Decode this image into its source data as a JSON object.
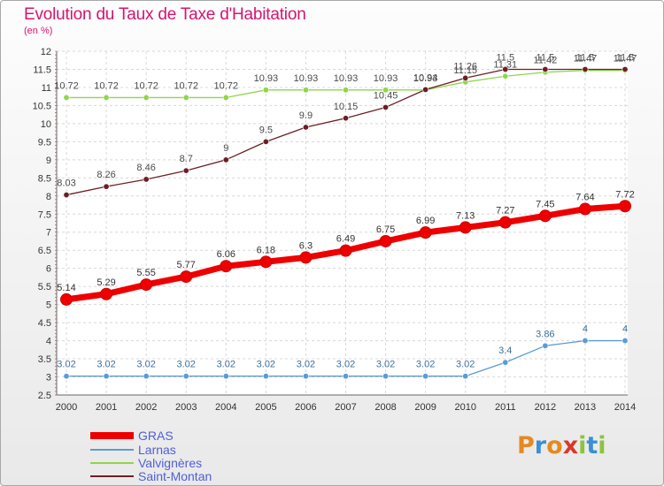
{
  "title": "Evolution du Taux de Taxe d'Habitation",
  "subtitle": "(en %)",
  "brand": {
    "text": "Proxiti",
    "letters": [
      {
        "ch": "P",
        "color": "#e58a1f"
      },
      {
        "ch": "r",
        "color": "#3b8fd6"
      },
      {
        "ch": "o",
        "color": "#e58a1f"
      },
      {
        "ch": "x",
        "color": "#d83a2a"
      },
      {
        "ch": "i",
        "color": "#8cc43c"
      },
      {
        "ch": "t",
        "color": "#3b8fd6"
      },
      {
        "ch": "i",
        "color": "#8cc43c"
      }
    ]
  },
  "colors": {
    "title": "#d4156f",
    "legend_text": "#4f5fd9",
    "grid": "#d8d8d8",
    "axis": "#666666"
  },
  "chart_data": {
    "type": "line",
    "title": "Evolution du Taux de Taxe d'Habitation",
    "ylabel": "(en %)",
    "xlabel": "",
    "x": [
      "2000",
      "2001",
      "2002",
      "2003",
      "2004",
      "2005",
      "2006",
      "2007",
      "2008",
      "2009",
      "2010",
      "2011",
      "2012",
      "2013",
      "2014"
    ],
    "ylim": [
      2.5,
      12
    ],
    "yticks": [
      "2.5",
      "3",
      "3.5",
      "4",
      "4.5",
      "5",
      "5.5",
      "6",
      "6.5",
      "7",
      "7.5",
      "8",
      "8.5",
      "9",
      "9.5",
      "10",
      "10.5",
      "11",
      "11.5",
      "12"
    ],
    "grid": true,
    "legend_position": "bottom-left",
    "series": [
      {
        "name": "GRAS",
        "color": "#ee0000",
        "style": "thick",
        "values": [
          5.14,
          5.29,
          5.55,
          5.77,
          6.06,
          6.18,
          6.3,
          6.49,
          6.75,
          6.99,
          7.13,
          7.27,
          7.45,
          7.64,
          7.72
        ],
        "labels": [
          "5.14",
          "5.29",
          "5.55",
          "5.77",
          "6.06",
          "6.18",
          "6.3",
          "6.49",
          "6.75",
          "6.99",
          "7.13",
          "7.27",
          "7.45",
          "7.64",
          "7.72"
        ]
      },
      {
        "name": "Larnas",
        "color": "#5b9bd5",
        "style": "thin",
        "values": [
          3.02,
          3.02,
          3.02,
          3.02,
          3.02,
          3.02,
          3.02,
          3.02,
          3.02,
          3.02,
          3.02,
          3.4,
          3.86,
          4,
          4
        ],
        "labels": [
          "3.02",
          "3.02",
          "3.02",
          "3.02",
          "3.02",
          "3.02",
          "3.02",
          "3.02",
          "3.02",
          "3.02",
          "3.02",
          "3.4",
          "3.86",
          "4",
          "4"
        ]
      },
      {
        "name": "Valvignères",
        "color": "#8fd64a",
        "style": "thin",
        "values": [
          10.72,
          10.72,
          10.72,
          10.72,
          10.72,
          10.93,
          10.93,
          10.93,
          10.93,
          10.93,
          11.15,
          11.31,
          11.42,
          11.47,
          11.47
        ],
        "labels": [
          "10.72",
          "10.72",
          "10.72",
          "10.72",
          "10.72",
          "10.93",
          "10.93",
          "10.93",
          "10.93",
          "10.93",
          "11.15",
          "11.31",
          "11.42",
          "11.47",
          "11.47"
        ]
      },
      {
        "name": "Saint-Montan",
        "color": "#6b1f24",
        "style": "thin",
        "values": [
          8.03,
          8.26,
          8.46,
          8.7,
          9,
          9.5,
          9.9,
          10.15,
          10.45,
          10.94,
          11.26,
          11.5,
          11.5,
          11.5,
          11.5
        ],
        "labels": [
          "8.03",
          "8.26",
          "8.46",
          "8.7",
          "9",
          "9.5",
          "9.9",
          "10.15",
          "10.45",
          "10.94",
          "11.26",
          "11.5",
          "11.5",
          "11.5",
          "11.5"
        ]
      }
    ]
  }
}
